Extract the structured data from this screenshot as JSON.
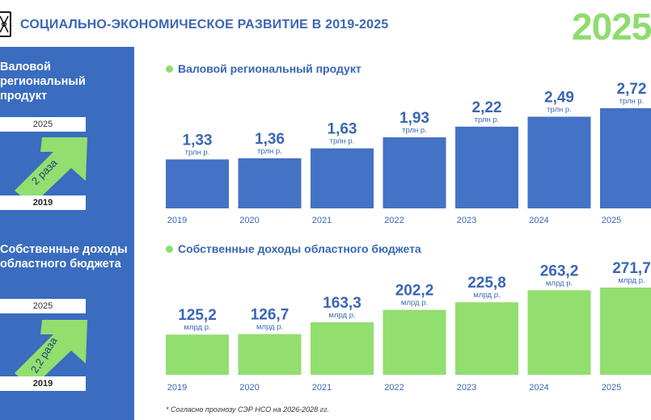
{
  "header": {
    "title": "СОЦИАЛЬНО-ЭКОНОМИЧЕСКОЕ РАЗВИТИЕ В 2019-2025",
    "big_year": "2025"
  },
  "sidebar": {
    "blocks": [
      {
        "title": "Валовой региональный продукт",
        "year_top": "2025",
        "growth": "2 раза",
        "year_bottom": "2019"
      },
      {
        "title": "Собственные доходы областного бюджета",
        "year_top": "2025",
        "growth": "2,2 раза",
        "year_bottom": "2019"
      }
    ]
  },
  "footnote": "* Согласно прогнозу СЭР НСО на 2026-2028 гг.",
  "colors": {
    "blue": "#4472c4",
    "green": "#92de6f",
    "title_blue": "#3a66b5",
    "sidebar_blue": "#3a6cc0"
  },
  "chart_data": [
    {
      "type": "bar",
      "title": "Валовой региональный продукт",
      "categories": [
        "2019",
        "2020",
        "2021",
        "2022",
        "2023",
        "2024",
        "2025"
      ],
      "values": [
        1.33,
        1.36,
        1.63,
        1.93,
        2.22,
        2.49,
        2.72
      ],
      "value_labels": [
        "1,33",
        "1,36",
        "1,63",
        "1,93",
        "2,22",
        "2,49",
        "2,72"
      ],
      "unit_label": "трлн р.",
      "color": "#4472c4"
    },
    {
      "type": "bar",
      "title": "Собственные доходы областного бюджета",
      "categories": [
        "2019",
        "2020",
        "2021",
        "2022",
        "2023",
        "2024",
        "2025"
      ],
      "values": [
        125.2,
        126.7,
        163.3,
        202.2,
        225.8,
        263.2,
        271.7
      ],
      "value_labels": [
        "125,2",
        "126,7",
        "163,3",
        "202,2",
        "225,8",
        "263,2",
        "271,7"
      ],
      "unit_label": "млрд р.",
      "color": "#92de6f"
    }
  ]
}
